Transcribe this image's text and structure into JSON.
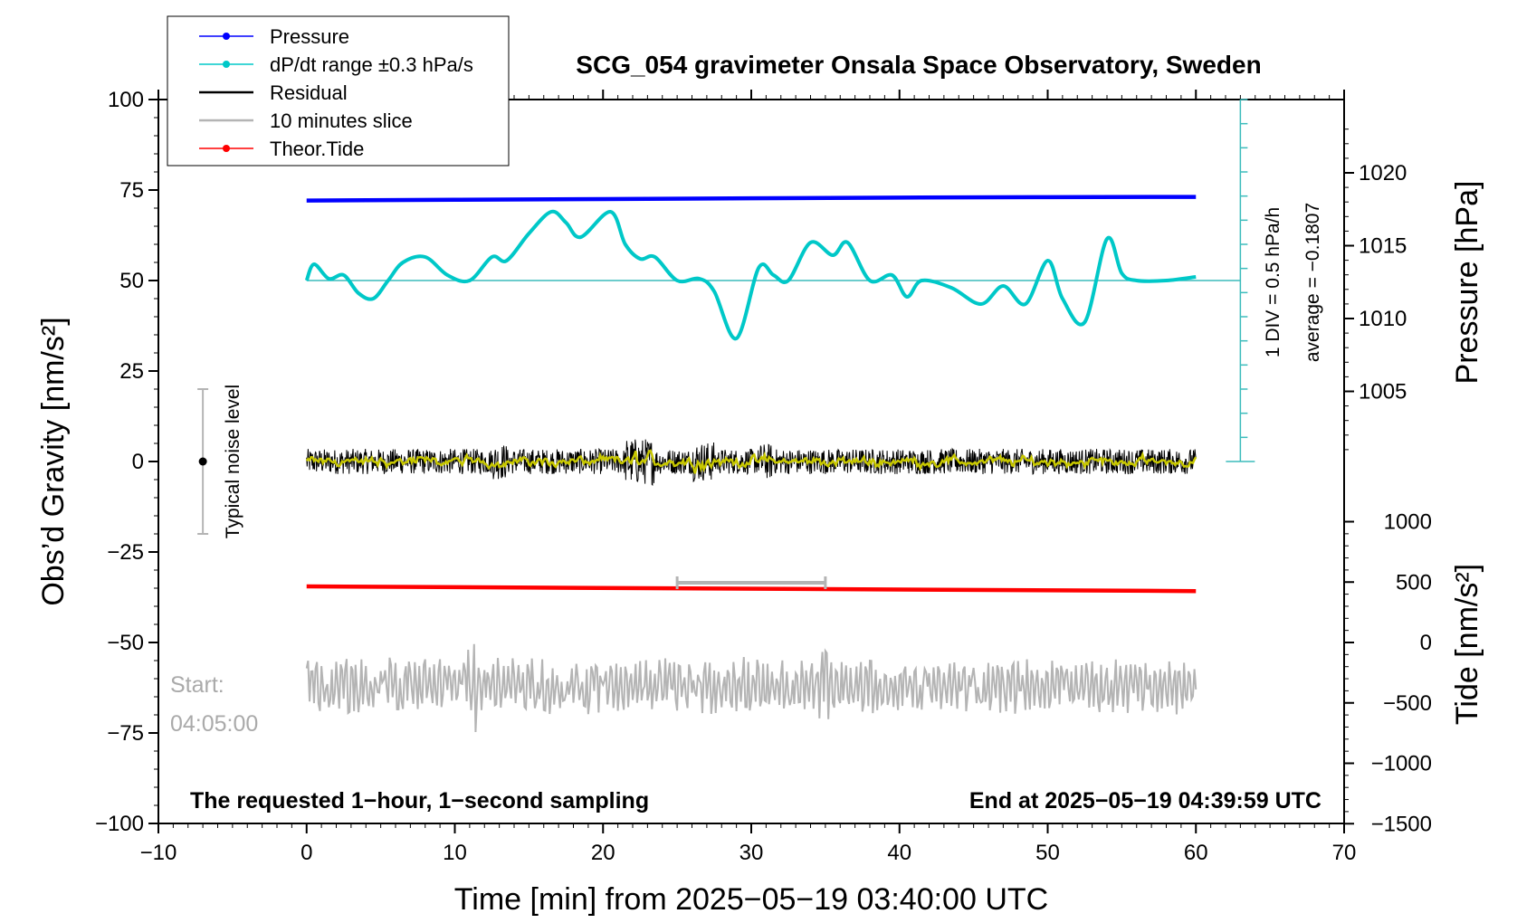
{
  "chart_data": {
    "type": "line",
    "title": "SCG_054 gravimeter Onsala Space Observatory, Sweden",
    "xlabel": "Time [min] from 2025−05−19 03:40:00 UTC",
    "ylabel_left": "Obs’d Gravity [nm/s²]",
    "ylabel_right_top": "Pressure [hPa]",
    "ylabel_right_bottom": "Tide [nm/s²]",
    "xlim": [
      -10,
      70
    ],
    "ylim_left": [
      -100,
      100
    ],
    "x_ticks": [
      "−10",
      "0",
      "10",
      "20",
      "30",
      "40",
      "50",
      "60",
      "70"
    ],
    "y_ticks_left": [
      "100",
      "75",
      "50",
      "25",
      "0",
      "−25",
      "−50",
      "−75",
      "−100"
    ],
    "pressure_ticks": [
      "1020",
      "1015",
      "1010",
      "1005"
    ],
    "tide_ticks": [
      "1000",
      "500",
      "0",
      "−500",
      "−1000",
      "−1500"
    ],
    "legend": {
      "position": "top-left",
      "entries": [
        {
          "label": "Pressure",
          "color": "#0000ff",
          "marker": true
        },
        {
          "label": "dP/dt range ±0.3 hPa/s",
          "color": "#00c8c8",
          "marker": true
        },
        {
          "label": "Residual",
          "color": "#000000",
          "marker": false
        },
        {
          "label": "10 minutes slice",
          "color": "#b4b4b4",
          "marker": false
        },
        {
          "label": "Theor.Tide",
          "color": "#ff0000",
          "marker": true
        }
      ]
    },
    "series": [
      {
        "name": "Pressure",
        "color": "#0000ff",
        "x": [
          0,
          10,
          20,
          30,
          40,
          50,
          60
        ],
        "pressure_hpa": [
          1018.1,
          1018.15,
          1018.2,
          1018.25,
          1018.3,
          1018.33,
          1018.35
        ]
      },
      {
        "name": "dP/dt range ±0.3 hPa/s",
        "color": "#00c8c8",
        "x": [
          0,
          0.5,
          1.5,
          2.5,
          3.5,
          4.5,
          5.5,
          6.5,
          8,
          9.5,
          11,
          12.5,
          13.5,
          15,
          16.5,
          17.5,
          18.5,
          20.5,
          21.5,
          22.5,
          23.5,
          25,
          26.5,
          27.5,
          29,
          30.5,
          31.5,
          32.5,
          34,
          35.5,
          36.5,
          38,
          39.5,
          40.5,
          41.5,
          43.5,
          45.5,
          47,
          48.5,
          50,
          51,
          52.5,
          54,
          55,
          56,
          58,
          60
        ],
        "y": [
          50,
          54.5,
          50.5,
          51.5,
          46.5,
          45,
          50,
          55,
          56.5,
          51.5,
          50,
          56.5,
          55.5,
          63,
          69,
          66,
          62,
          69,
          60,
          56,
          56.5,
          50,
          50.5,
          47,
          34,
          53.5,
          51.5,
          50,
          60.5,
          57,
          60.5,
          50,
          51.5,
          45.5,
          50,
          48,
          43.5,
          48.5,
          43.5,
          55.5,
          45,
          38.5,
          61.5,
          52,
          50,
          50,
          51
        ]
      },
      {
        "name": "Residual",
        "color": "#000000",
        "x_range": [
          0,
          60
        ],
        "amplitude_nm_s2": 4
      },
      {
        "name": "10 minutes slice",
        "color": "#b4b4b4",
        "x_range": [
          0,
          60
        ],
        "y_center": -62
      },
      {
        "name": "Theor.Tide",
        "color": "#ff0000",
        "x": [
          0,
          60
        ],
        "y_left_units": [
          -34.5,
          -35.8
        ]
      }
    ],
    "annotations": {
      "dpdt_scale_1": "1 DIV = 0.5 hPa/h",
      "dpdt_scale_2": "average = −0.1807",
      "noise_label": "Typical noise level",
      "noise_range": [
        -20,
        20
      ],
      "start_label": "Start:",
      "start_time": "04:05:00",
      "slice_range_min": [
        25,
        35
      ],
      "footer_left": "The requested 1−hour, 1−second sampling",
      "footer_right": "End at 2025−05−19 04:39:59 UTC"
    },
    "grid": false
  }
}
